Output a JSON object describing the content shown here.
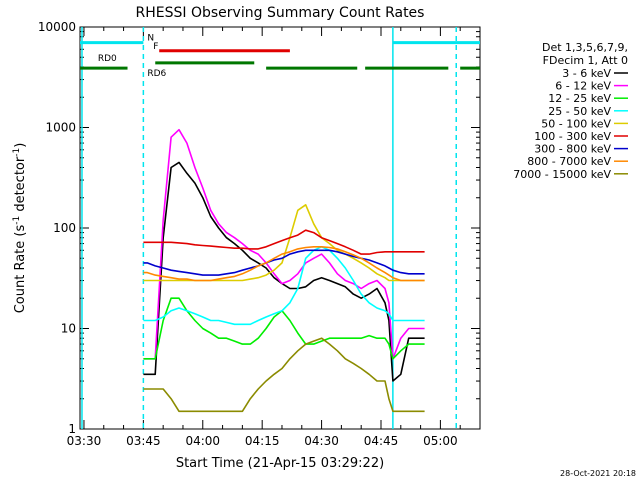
{
  "chart_data": {
    "type": "line",
    "title": "RHESSI Observing Summary Count Rates",
    "xlabel": "Start Time (21-Apr-15 03:29:22)",
    "ylabel_main": "Count Rate (s",
    "ylabel_sup1": "-1",
    "ylabel_mid": " detector",
    "ylabel_sup2": "-1",
    "ylabel_end": ")",
    "yscale": "log",
    "ylim": [
      1,
      10000
    ],
    "xlim_min": [
      209,
      310
    ],
    "x_ticks": [
      {
        "min": 210,
        "label": "03:30"
      },
      {
        "min": 225,
        "label": "03:45"
      },
      {
        "min": 240,
        "label": "04:00"
      },
      {
        "min": 255,
        "label": "04:15"
      },
      {
        "min": 270,
        "label": "04:30"
      },
      {
        "min": 285,
        "label": "04:45"
      },
      {
        "min": 300,
        "label": "05:00"
      }
    ],
    "y_ticks": [
      {
        "value": 1,
        "label": "1"
      },
      {
        "value": 10,
        "label": "10"
      },
      {
        "value": 100,
        "label": "100"
      },
      {
        "value": 1000,
        "label": "1000"
      },
      {
        "value": 10000,
        "label": "10000"
      }
    ],
    "legend_header": [
      "Det 1,3,5,6,7,9,",
      "FDecim 1, Att 0"
    ],
    "legend_placement": "right",
    "timestamp": "28-Oct-2021 20:18",
    "flags": [
      {
        "label": "N",
        "color": "#00e5ee",
        "level": 7000,
        "segments": [
          [
            209,
            225
          ],
          [
            288,
            310
          ]
        ]
      },
      {
        "label": "F",
        "color": "#e00000",
        "level": 5800,
        "segments": [
          [
            229,
            262
          ]
        ]
      },
      {
        "label": "RD0",
        "color": "#007700",
        "level": 4400,
        "segments": [
          [
            228,
            253
          ]
        ]
      },
      {
        "label": "RD6",
        "color": "#007700",
        "level": 3900,
        "segments": [
          [
            209,
            221
          ],
          [
            256,
            279
          ],
          [
            281,
            302
          ],
          [
            305,
            310
          ]
        ]
      }
    ],
    "vlines": [
      {
        "min": 209.5,
        "color": "#00e5ee",
        "style": "solid"
      },
      {
        "min": 225,
        "color": "#00e5ee",
        "style": "dashed"
      },
      {
        "min": 288,
        "color": "#00e5ee",
        "style": "solid"
      },
      {
        "min": 304,
        "color": "#00e5ee",
        "style": "dashed"
      }
    ],
    "series": [
      {
        "name": "3 - 6 keV",
        "color": "#000000",
        "x": [
          225,
          226,
          228,
          230,
          232,
          234,
          236,
          238,
          240,
          242,
          244,
          246,
          248,
          250,
          252,
          254,
          256,
          258,
          260,
          262,
          264,
          266,
          268,
          270,
          272,
          274,
          276,
          278,
          280,
          282,
          284,
          286,
          287,
          288,
          290,
          292,
          294,
          296
        ],
        "y": [
          3.5,
          3.5,
          3.5,
          80,
          400,
          450,
          350,
          280,
          200,
          130,
          100,
          80,
          70,
          60,
          50,
          45,
          40,
          32,
          28,
          25,
          25,
          26,
          30,
          32,
          30,
          28,
          26,
          22,
          20,
          22,
          25,
          18,
          12,
          3,
          3.5,
          8,
          8,
          8
        ]
      },
      {
        "name": "6 - 12 keV",
        "color": "#ff00ff",
        "x": [
          225,
          226,
          228,
          230,
          232,
          234,
          236,
          238,
          240,
          242,
          244,
          246,
          248,
          250,
          252,
          254,
          256,
          258,
          260,
          262,
          264,
          266,
          268,
          270,
          272,
          274,
          276,
          278,
          280,
          282,
          284,
          286,
          287,
          288,
          290,
          292,
          294,
          296
        ],
        "y": [
          5,
          5,
          5,
          120,
          800,
          950,
          700,
          400,
          250,
          150,
          110,
          90,
          80,
          70,
          60,
          55,
          45,
          35,
          28,
          30,
          35,
          45,
          50,
          55,
          45,
          35,
          30,
          28,
          25,
          28,
          30,
          25,
          18,
          5,
          8,
          10,
          10,
          10
        ]
      },
      {
        "name": "12 - 25 keV",
        "color": "#00ee00",
        "x": [
          225,
          226,
          228,
          230,
          232,
          234,
          236,
          238,
          240,
          242,
          244,
          246,
          248,
          250,
          252,
          254,
          256,
          258,
          260,
          262,
          264,
          266,
          268,
          270,
          272,
          274,
          276,
          278,
          280,
          282,
          284,
          286,
          287,
          288,
          290,
          292,
          294,
          296
        ],
        "y": [
          5,
          5,
          5,
          12,
          20,
          20,
          15,
          12,
          10,
          9,
          8,
          8,
          7.5,
          7,
          7,
          8,
          10,
          13,
          15,
          12,
          9,
          7,
          7,
          7.5,
          8,
          8,
          8,
          8,
          8,
          8.5,
          8,
          8,
          7,
          5,
          6,
          7,
          7,
          7
        ]
      },
      {
        "name": "25 - 50 keV",
        "color": "#00ffff",
        "x": [
          225,
          226,
          228,
          230,
          232,
          234,
          236,
          238,
          240,
          242,
          244,
          246,
          248,
          250,
          252,
          254,
          256,
          258,
          260,
          262,
          264,
          266,
          268,
          270,
          272,
          274,
          276,
          278,
          280,
          282,
          284,
          286,
          287,
          288,
          290,
          292,
          294,
          296
        ],
        "y": [
          12,
          12,
          12,
          13,
          15,
          16,
          15,
          14,
          13,
          12,
          12,
          11.5,
          11,
          11,
          11,
          12,
          13,
          14,
          15,
          18,
          25,
          50,
          60,
          65,
          60,
          50,
          40,
          30,
          22,
          18,
          16,
          15,
          14,
          12,
          12,
          12,
          12,
          12
        ]
      },
      {
        "name": "50 - 100 keV",
        "color": "#ddcc00",
        "x": [
          225,
          226,
          228,
          230,
          232,
          234,
          236,
          238,
          240,
          242,
          244,
          246,
          248,
          250,
          252,
          254,
          256,
          258,
          260,
          262,
          264,
          266,
          268,
          270,
          272,
          274,
          276,
          278,
          280,
          282,
          284,
          286,
          287,
          288,
          290,
          292,
          294,
          296
        ],
        "y": [
          30,
          30,
          30,
          30,
          30,
          30,
          30,
          30,
          30,
          30,
          30,
          30,
          30,
          30,
          31,
          32,
          34,
          38,
          45,
          80,
          150,
          170,
          110,
          80,
          70,
          60,
          55,
          50,
          45,
          40,
          35,
          32,
          30,
          30,
          30,
          30,
          30,
          30
        ]
      },
      {
        "name": "100 - 300 keV",
        "color": "#e00000",
        "x": [
          225,
          226,
          228,
          230,
          232,
          234,
          236,
          238,
          240,
          242,
          244,
          246,
          248,
          250,
          252,
          254,
          256,
          258,
          260,
          262,
          264,
          266,
          268,
          270,
          272,
          274,
          276,
          278,
          280,
          282,
          284,
          286,
          287,
          288,
          290,
          292,
          294,
          296
        ],
        "y": [
          72,
          72,
          72,
          72,
          72,
          71,
          70,
          68,
          67,
          66,
          65,
          64,
          63,
          63,
          62,
          62,
          65,
          70,
          75,
          80,
          85,
          95,
          90,
          80,
          75,
          70,
          65,
          60,
          55,
          55,
          57,
          58,
          58,
          58,
          58,
          58,
          58,
          58
        ]
      },
      {
        "name": "300 - 800 keV",
        "color": "#0000cc",
        "x": [
          225,
          226,
          228,
          230,
          232,
          234,
          236,
          238,
          240,
          242,
          244,
          246,
          248,
          250,
          252,
          254,
          256,
          258,
          260,
          262,
          264,
          266,
          268,
          270,
          272,
          274,
          276,
          278,
          280,
          282,
          284,
          286,
          287,
          288,
          290,
          292,
          294,
          296
        ],
        "y": [
          45,
          45,
          42,
          40,
          38,
          37,
          36,
          35,
          34,
          34,
          34,
          35,
          36,
          38,
          40,
          42,
          45,
          48,
          50,
          55,
          58,
          60,
          60,
          60,
          60,
          58,
          55,
          52,
          50,
          48,
          45,
          42,
          40,
          38,
          36,
          35,
          35,
          35
        ]
      },
      {
        "name": "800 - 7000 keV",
        "color": "#ff8800",
        "x": [
          225,
          226,
          228,
          230,
          232,
          234,
          236,
          238,
          240,
          242,
          244,
          246,
          248,
          250,
          252,
          254,
          256,
          258,
          260,
          262,
          264,
          266,
          268,
          270,
          272,
          274,
          276,
          278,
          280,
          282,
          284,
          286,
          287,
          288,
          290,
          292,
          294,
          296
        ],
        "y": [
          36,
          36,
          34,
          33,
          32,
          31,
          31,
          30,
          30,
          30,
          31,
          32,
          33,
          35,
          38,
          42,
          45,
          50,
          55,
          58,
          62,
          64,
          65,
          65,
          64,
          62,
          58,
          54,
          50,
          45,
          40,
          36,
          34,
          32,
          30,
          30,
          30,
          30
        ]
      },
      {
        "name": "7000 - 15000 keV",
        "color": "#8b8b00",
        "x": [
          225,
          226,
          228,
          230,
          232,
          234,
          236,
          238,
          240,
          242,
          244,
          246,
          248,
          250,
          252,
          254,
          256,
          258,
          260,
          262,
          264,
          266,
          268,
          270,
          272,
          274,
          276,
          278,
          280,
          282,
          284,
          286,
          287,
          288,
          290,
          292,
          294,
          296
        ],
        "y": [
          2.5,
          2.5,
          2.5,
          2.5,
          2,
          1.5,
          1.5,
          1.5,
          1.5,
          1.5,
          1.5,
          1.5,
          1.5,
          1.5,
          2,
          2.5,
          3,
          3.5,
          4,
          5,
          6,
          7,
          7.5,
          8,
          7,
          6,
          5,
          4.5,
          4,
          3.5,
          3,
          3,
          2,
          1.5,
          1.5,
          1.5,
          1.5,
          1.5
        ]
      }
    ]
  }
}
